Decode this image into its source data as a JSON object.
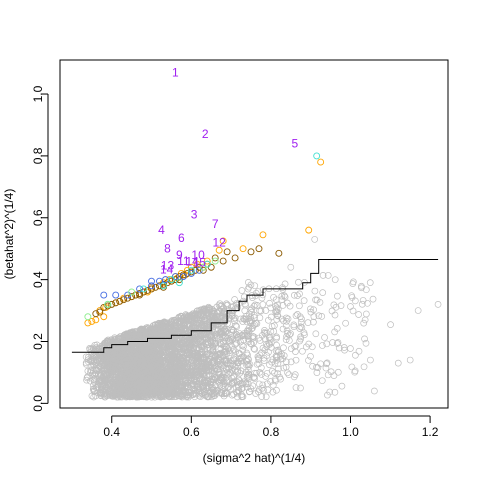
{
  "chart_data": {
    "type": "scatter",
    "xlabel": "(sigma^2 hat)^(1/4)",
    "ylabel": "(betahat^2)^(1/4)",
    "xlim": [
      0.27,
      1.245
    ],
    "ylim": [
      -0.015,
      1.11
    ],
    "x_ticks": [
      0.4,
      0.6,
      0.8,
      1.0,
      1.2
    ],
    "x_tick_labels": [
      "0.4",
      "0.6",
      "0.8",
      "1.0",
      "1.2"
    ],
    "y_ticks": [
      0.0,
      0.2,
      0.4,
      0.6,
      0.8,
      1.0
    ],
    "y_tick_labels": [
      "0.0",
      "0.2",
      "0.4",
      "0.6",
      "0.8",
      "1.0"
    ],
    "grid": false,
    "legend": "none",
    "colors": {
      "background_points": "#bebebe",
      "brown": "#8b5a00",
      "orange": "#ffa500",
      "blue": "#4169e1",
      "cyan": "#40e0d0",
      "green": "#90ee90",
      "purple": "#a020f0",
      "threshold_line": "#000000"
    },
    "labeled_points": [
      {
        "label": "1",
        "x": 0.56,
        "y": 1.07
      },
      {
        "label": "2",
        "x": 0.635,
        "y": 0.87
      },
      {
        "label": "5",
        "x": 0.86,
        "y": 0.84
      },
      {
        "label": "3",
        "x": 0.607,
        "y": 0.61
      },
      {
        "label": "7",
        "x": 0.66,
        "y": 0.58
      },
      {
        "label": "4",
        "x": 0.525,
        "y": 0.56
      },
      {
        "label": "6",
        "x": 0.575,
        "y": 0.535
      },
      {
        "label": "12",
        "x": 0.67,
        "y": 0.52
      },
      {
        "label": "8",
        "x": 0.54,
        "y": 0.5
      },
      {
        "label": "9",
        "x": 0.57,
        "y": 0.48
      },
      {
        "label": "10",
        "x": 0.617,
        "y": 0.48
      },
      {
        "label": "11",
        "x": 0.58,
        "y": 0.46
      },
      {
        "label": "14",
        "x": 0.602,
        "y": 0.458
      },
      {
        "label": "15",
        "x": 0.62,
        "y": 0.455
      },
      {
        "label": "13",
        "x": 0.54,
        "y": 0.445
      },
      {
        "label": "14",
        "x": 0.538,
        "y": 0.432
      }
    ],
    "highlighted_points": {
      "orange": [
        [
          0.925,
          0.78
        ],
        [
          0.895,
          0.56
        ],
        [
          0.78,
          0.545
        ],
        [
          0.68,
          0.525
        ],
        [
          0.73,
          0.5
        ],
        [
          0.67,
          0.495
        ],
        [
          0.64,
          0.46
        ],
        [
          0.615,
          0.45
        ],
        [
          0.6,
          0.44
        ],
        [
          0.59,
          0.43
        ],
        [
          0.575,
          0.42
        ],
        [
          0.56,
          0.41
        ],
        [
          0.545,
          0.4
        ],
        [
          0.53,
          0.39
        ],
        [
          0.52,
          0.38
        ],
        [
          0.5,
          0.37
        ],
        [
          0.49,
          0.36
        ],
        [
          0.47,
          0.355
        ],
        [
          0.46,
          0.35
        ],
        [
          0.45,
          0.345
        ],
        [
          0.43,
          0.34
        ],
        [
          0.42,
          0.33
        ],
        [
          0.41,
          0.325
        ],
        [
          0.385,
          0.31
        ],
        [
          0.37,
          0.3
        ],
        [
          0.36,
          0.27
        ],
        [
          0.35,
          0.265
        ],
        [
          0.34,
          0.26
        ],
        [
          0.38,
          0.28
        ],
        [
          0.63,
          0.44
        ],
        [
          0.61,
          0.43
        ],
        [
          0.585,
          0.415
        ],
        [
          0.565,
          0.405
        ],
        [
          0.55,
          0.395
        ],
        [
          0.5,
          0.375
        ]
      ],
      "brown": [
        [
          0.69,
          0.49
        ],
        [
          0.66,
          0.47
        ],
        [
          0.64,
          0.45
        ],
        [
          0.62,
          0.44
        ],
        [
          0.61,
          0.43
        ],
        [
          0.6,
          0.425
        ],
        [
          0.59,
          0.42
        ],
        [
          0.58,
          0.415
        ],
        [
          0.57,
          0.41
        ],
        [
          0.56,
          0.4
        ],
        [
          0.55,
          0.395
        ],
        [
          0.54,
          0.39
        ],
        [
          0.53,
          0.385
        ],
        [
          0.52,
          0.38
        ],
        [
          0.51,
          0.375
        ],
        [
          0.5,
          0.37
        ],
        [
          0.49,
          0.365
        ],
        [
          0.48,
          0.36
        ],
        [
          0.47,
          0.355
        ],
        [
          0.46,
          0.35
        ],
        [
          0.45,
          0.345
        ],
        [
          0.44,
          0.34
        ],
        [
          0.43,
          0.335
        ],
        [
          0.42,
          0.33
        ],
        [
          0.41,
          0.325
        ],
        [
          0.4,
          0.32
        ],
        [
          0.39,
          0.315
        ],
        [
          0.38,
          0.31
        ],
        [
          0.37,
          0.295
        ],
        [
          0.36,
          0.29
        ],
        [
          0.75,
          0.49
        ],
        [
          0.82,
          0.485
        ],
        [
          0.77,
          0.5
        ],
        [
          0.71,
          0.47
        ],
        [
          0.68,
          0.46
        ],
        [
          0.65,
          0.44
        ],
        [
          0.63,
          0.43
        ],
        [
          0.57,
          0.4
        ],
        [
          0.53,
          0.375
        ],
        [
          0.47,
          0.35
        ]
      ],
      "blue": [
        [
          0.38,
          0.35
        ],
        [
          0.41,
          0.35
        ],
        [
          0.44,
          0.35
        ],
        [
          0.47,
          0.37
        ],
        [
          0.5,
          0.395
        ],
        [
          0.52,
          0.395
        ],
        [
          0.535,
          0.4
        ],
        [
          0.56,
          0.41
        ],
        [
          0.58,
          0.41
        ],
        [
          0.6,
          0.42
        ],
        [
          0.62,
          0.43
        ],
        [
          0.5,
          0.38
        ]
      ],
      "cyan": [
        [
          0.915,
          0.8
        ],
        [
          0.53,
          0.38
        ],
        [
          0.55,
          0.4
        ],
        [
          0.57,
          0.39
        ],
        [
          0.6,
          0.43
        ],
        [
          0.64,
          0.45
        ],
        [
          0.48,
          0.37
        ],
        [
          0.39,
          0.32
        ]
      ],
      "green": [
        [
          0.34,
          0.28
        ],
        [
          0.39,
          0.32
        ],
        [
          0.45,
          0.36
        ],
        [
          0.63,
          0.44
        ],
        [
          0.66,
          0.46
        ]
      ]
    },
    "threshold_line": [
      [
        0.3,
        0.165
      ],
      [
        0.38,
        0.165
      ],
      [
        0.38,
        0.18
      ],
      [
        0.4,
        0.18
      ],
      [
        0.4,
        0.19
      ],
      [
        0.44,
        0.19
      ],
      [
        0.44,
        0.2
      ],
      [
        0.49,
        0.2
      ],
      [
        0.49,
        0.21
      ],
      [
        0.55,
        0.21
      ],
      [
        0.55,
        0.22
      ],
      [
        0.6,
        0.22
      ],
      [
        0.6,
        0.235
      ],
      [
        0.65,
        0.235
      ],
      [
        0.65,
        0.26
      ],
      [
        0.69,
        0.26
      ],
      [
        0.69,
        0.3
      ],
      [
        0.72,
        0.3
      ],
      [
        0.72,
        0.33
      ],
      [
        0.74,
        0.33
      ],
      [
        0.74,
        0.35
      ],
      [
        0.78,
        0.35
      ],
      [
        0.78,
        0.37
      ],
      [
        0.88,
        0.37
      ],
      [
        0.88,
        0.39
      ],
      [
        0.9,
        0.39
      ],
      [
        0.9,
        0.42
      ],
      [
        0.92,
        0.42
      ],
      [
        0.92,
        0.465
      ],
      [
        1.22,
        0.465
      ]
    ]
  }
}
